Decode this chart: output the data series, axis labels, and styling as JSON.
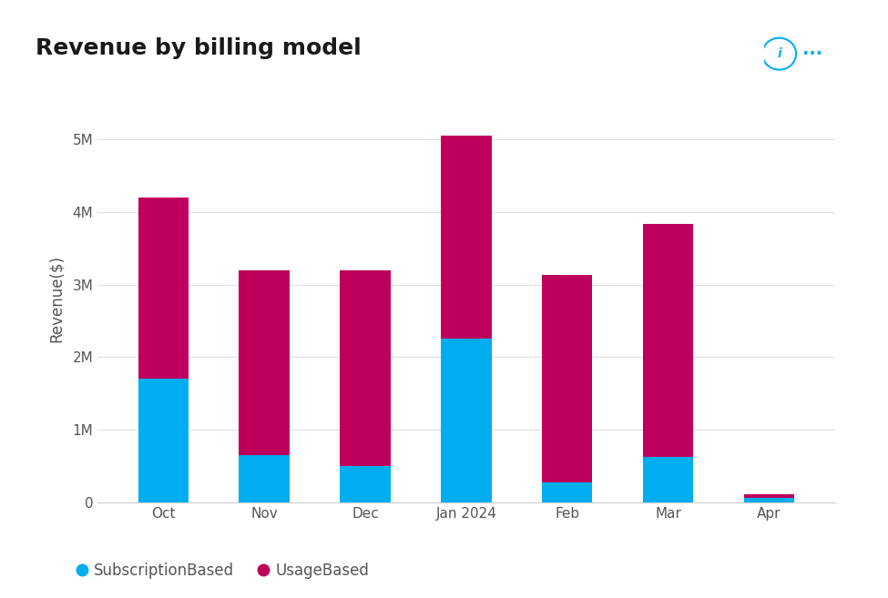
{
  "title": "Revenue by billing model",
  "ylabel": "Revenue($)",
  "categories": [
    "Oct",
    "Nov",
    "Dec",
    "Jan 2024",
    "Feb",
    "Mar",
    "Apr"
  ],
  "subscription_based": [
    1700000,
    650000,
    500000,
    2250000,
    280000,
    630000,
    55000
  ],
  "usage_based": [
    2500000,
    2550000,
    2700000,
    2800000,
    2850000,
    3200000,
    55000
  ],
  "subscription_color": "#00AEEF",
  "usage_color": "#BE005C",
  "background_color": "#FFFFFF",
  "card_border_color": "#E0E0E0",
  "legend_labels": [
    "SubscriptionBased",
    "UsageBased"
  ],
  "ylim": [
    0,
    5600000
  ],
  "yticks": [
    0,
    1000000,
    2000000,
    3000000,
    4000000,
    5000000
  ],
  "ytick_labels": [
    "0",
    "1M",
    "2M",
    "3M",
    "4M",
    "5M"
  ],
  "title_fontsize": 18,
  "axis_fontsize": 12,
  "legend_fontsize": 12,
  "tick_fontsize": 11,
  "bar_width": 0.5
}
